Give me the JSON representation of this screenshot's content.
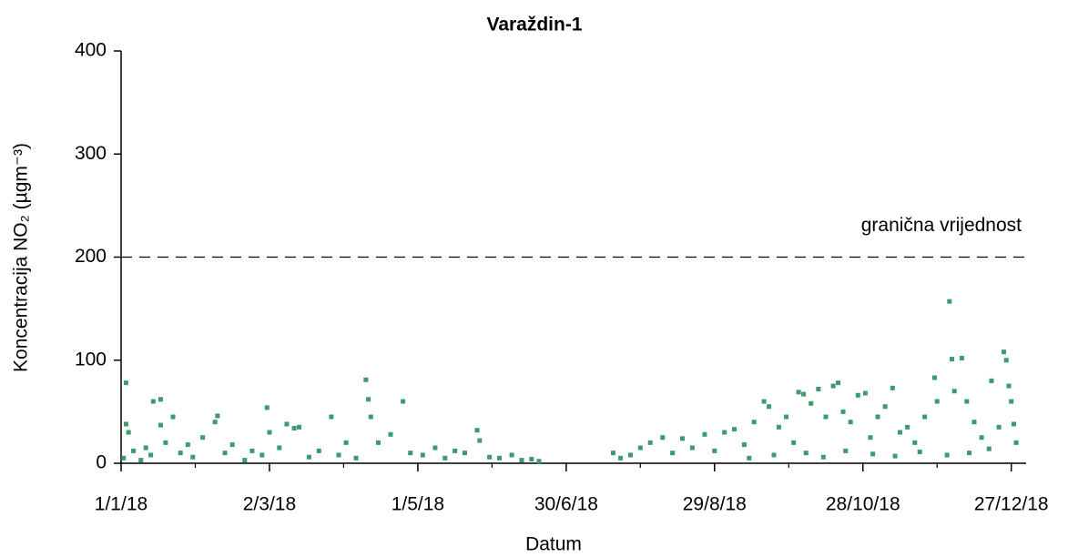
{
  "chart_data": {
    "type": "scatter",
    "title": "Varaždin-1",
    "xlabel": "Datum",
    "ylabel": "Koncentracija NO₂ (µgm⁻³)",
    "color": "#3b9b6b",
    "xlim": [
      "2018-01-01",
      "2019-01-02"
    ],
    "ylim": [
      0,
      400
    ],
    "xticks": [
      {
        "value": "2018-01-01",
        "label": "1/1/18"
      },
      {
        "value": "2018-03-02",
        "label": "2/3/18"
      },
      {
        "value": "2018-05-01",
        "label": "1/5/18"
      },
      {
        "value": "2018-06-30",
        "label": "30/6/18"
      },
      {
        "value": "2018-08-29",
        "label": "29/8/18"
      },
      {
        "value": "2018-10-28",
        "label": "28/10/18"
      },
      {
        "value": "2018-12-27",
        "label": "27/12/18"
      }
    ],
    "xminorticks": [
      "2018-01-31",
      "2018-04-01",
      "2018-05-31",
      "2018-07-30",
      "2018-09-28",
      "2018-11-27"
    ],
    "yticks": [
      0,
      100,
      200,
      300,
      400
    ],
    "hline": {
      "value": 200,
      "label": "granična vrijednost"
    },
    "x": [
      "2018-01-02",
      "2018-01-03",
      "2018-01-03",
      "2018-01-04",
      "2018-01-06",
      "2018-01-09",
      "2018-01-11",
      "2018-01-13",
      "2018-01-14",
      "2018-01-17",
      "2018-01-17",
      "2018-01-19",
      "2018-01-22",
      "2018-01-25",
      "2018-01-28",
      "2018-01-30",
      "2018-02-03",
      "2018-02-08",
      "2018-02-09",
      "2018-02-12",
      "2018-02-15",
      "2018-02-20",
      "2018-02-23",
      "2018-02-27",
      "2018-03-01",
      "2018-03-02",
      "2018-03-06",
      "2018-03-09",
      "2018-03-12",
      "2018-03-14",
      "2018-03-18",
      "2018-03-22",
      "2018-03-27",
      "2018-03-30",
      "2018-04-02",
      "2018-04-06",
      "2018-04-10",
      "2018-04-11",
      "2018-04-12",
      "2018-04-15",
      "2018-04-20",
      "2018-04-25",
      "2018-04-28",
      "2018-05-03",
      "2018-05-08",
      "2018-05-12",
      "2018-05-16",
      "2018-05-20",
      "2018-05-25",
      "2018-05-26",
      "2018-05-30",
      "2018-06-03",
      "2018-06-08",
      "2018-06-12",
      "2018-06-16",
      "2018-06-19",
      "2018-07-19",
      "2018-07-22",
      "2018-07-26",
      "2018-07-30",
      "2018-08-03",
      "2018-08-08",
      "2018-08-12",
      "2018-08-16",
      "2018-08-20",
      "2018-08-25",
      "2018-08-29",
      "2018-09-02",
      "2018-09-06",
      "2018-09-10",
      "2018-09-14",
      "2018-09-18",
      "2018-09-20",
      "2018-09-24",
      "2018-09-27",
      "2018-09-30",
      "2018-10-02",
      "2018-10-04",
      "2018-10-07",
      "2018-10-10",
      "2018-10-13",
      "2018-10-16",
      "2018-10-18",
      "2018-10-20",
      "2018-10-23",
      "2018-10-26",
      "2018-10-29",
      "2018-10-31",
      "2018-11-03",
      "2018-11-06",
      "2018-11-09",
      "2018-11-12",
      "2018-11-15",
      "2018-11-18",
      "2018-11-22",
      "2018-11-26",
      "2018-11-27",
      "2018-12-02",
      "2018-12-03",
      "2018-12-04",
      "2018-12-07",
      "2018-12-09",
      "2018-12-12",
      "2018-12-15",
      "2018-12-19",
      "2018-12-22",
      "2018-12-24",
      "2018-12-25",
      "2018-12-26",
      "2018-12-27",
      "2018-12-28",
      "2018-12-29",
      "2018-09-12",
      "2018-09-22",
      "2018-10-05",
      "2018-10-12",
      "2018-10-21",
      "2018-11-01",
      "2018-11-10",
      "2018-11-20",
      "2018-12-01",
      "2018-12-10",
      "2018-12-18"
    ],
    "values": [
      5,
      78,
      38,
      30,
      12,
      3,
      15,
      8,
      60,
      62,
      37,
      20,
      45,
      10,
      18,
      6,
      25,
      40,
      46,
      10,
      18,
      3,
      12,
      8,
      54,
      30,
      15,
      38,
      34,
      35,
      6,
      12,
      45,
      8,
      20,
      5,
      81,
      62,
      45,
      20,
      28,
      60,
      10,
      8,
      15,
      5,
      12,
      10,
      32,
      22,
      6,
      5,
      8,
      3,
      4,
      2,
      10,
      5,
      8,
      15,
      20,
      25,
      10,
      24,
      15,
      28,
      12,
      30,
      33,
      18,
      40,
      60,
      55,
      35,
      45,
      20,
      69,
      67,
      58,
      72,
      45,
      75,
      78,
      50,
      40,
      66,
      68,
      25,
      45,
      55,
      73,
      30,
      35,
      20,
      45,
      83,
      60,
      157,
      101,
      70,
      102,
      60,
      40,
      25,
      80,
      35,
      108,
      100,
      75,
      60,
      38,
      20,
      5,
      8,
      10,
      6,
      12,
      9,
      7,
      11,
      8,
      10,
      14
    ]
  }
}
